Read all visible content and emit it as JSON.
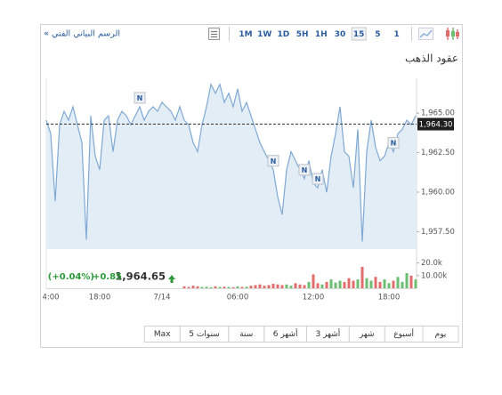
{
  "toolbar": {
    "link": "الرسم البياني الفني »",
    "intervals": [
      "1M",
      "1W",
      "1D",
      "5H",
      "1H",
      "30",
      "15",
      "5",
      "1"
    ],
    "selected": "15"
  },
  "ranges": [
    "يوم",
    "أسبوع",
    "شهر",
    "3 أشهر",
    "6 أشهر",
    "سنة",
    "5 سنوات",
    "Max"
  ],
  "chart_data": {
    "type": "line",
    "title": "عقود الذهب",
    "color": "#7fa9d4",
    "fill": "#e3edf6",
    "categories": [
      null,
      "4:00",
      null,
      null,
      null,
      null,
      null,
      null,
      null,
      null,
      null,
      null,
      "18:00",
      null,
      null,
      null,
      null,
      null,
      null,
      null,
      null,
      null,
      null,
      null,
      null,
      null,
      "7/14",
      null,
      null,
      null,
      null,
      null,
      null,
      null,
      null,
      null,
      null,
      null,
      null,
      null,
      null,
      null,
      null,
      "06:00",
      null,
      null,
      null,
      null,
      null,
      null,
      null,
      null,
      null,
      null,
      null,
      null,
      null,
      null,
      null,
      null,
      "12:00",
      null,
      null,
      null,
      null,
      null,
      null,
      null,
      null,
      null,
      null,
      null,
      null,
      null,
      null,
      null,
      null,
      "18:00",
      null,
      null,
      null,
      null,
      null,
      null
    ],
    "values": [
      1964.55,
      1963.69,
      1959.43,
      1964.26,
      1965.11,
      1964.55,
      1965.4,
      1964.26,
      1963.13,
      1956.99,
      1964.83,
      1962.27,
      1961.42,
      1964.55,
      1964.83,
      1962.56,
      1964.55,
      1965.11,
      1964.83,
      1964.26,
      1964.83,
      1965.4,
      1964.55,
      1965.11,
      1965.4,
      1965.11,
      1965.68,
      1965.4,
      1965.11,
      1964.55,
      1965.4,
      1964.55,
      1964.26,
      1963.13,
      1962.56,
      1964.26,
      1965.4,
      1966.82,
      1966.25,
      1966.82,
      1965.68,
      1966.25,
      1965.4,
      1966.53,
      1965.11,
      1965.68,
      1964.83,
      1963.98,
      1963.13,
      1962.56,
      1961.99,
      1961.42,
      1959.71,
      1958.58,
      1961.42,
      1962.56,
      1961.99,
      1961.42,
      1960.85,
      1961.99,
      1960.56,
      1960.28,
      1961.42,
      1960.0,
      1962.27,
      1963.69,
      1965.4,
      1962.56,
      1962.27,
      1960.28,
      1963.98,
      1956.88,
      1962.56,
      1964.55,
      1962.84,
      1961.99,
      1962.27,
      1963.13,
      1962.56,
      1963.69,
      1963.98,
      1964.55,
      1964.26,
      1964.83
    ],
    "ylim": [
      1956.4,
      1967.2
    ],
    "yticks": [
      {
        "value": 1965,
        "label": "1,965.00"
      },
      {
        "value": 1962.5,
        "label": "1,962.50"
      },
      {
        "value": 1960,
        "label": "1,960.00"
      },
      {
        "value": 1957.5,
        "label": "1,957.50"
      }
    ],
    "last_price": {
      "value": 1964.3,
      "label": "1,964.30"
    },
    "quote": {
      "price": "1,964.65",
      "change": "+0.85",
      "change_percent": "(+0.04%)"
    },
    "annotations": [
      {
        "text": "N",
        "at": 21
      },
      {
        "text": "N",
        "at": 51
      },
      {
        "text": "N",
        "at": 58
      },
      {
        "text": "N",
        "at": 61
      },
      {
        "text": "N",
        "at": 78
      }
    ],
    "volume": {
      "up_color": "#6cbf72",
      "down_color": "#e26d6d",
      "ylim": [
        0,
        24000
      ],
      "yticks": [
        {
          "value": 20000,
          "label": "20.0k"
        },
        {
          "value": 10000,
          "label": "10.00k"
        }
      ],
      "values": [
        0,
        0,
        0,
        0,
        0,
        0,
        0,
        0,
        0,
        0,
        0,
        0,
        0,
        0,
        0,
        0,
        0,
        0,
        0,
        0,
        0,
        0,
        0,
        0,
        0,
        0,
        0,
        0,
        0,
        0,
        0,
        1500,
        1000,
        2000,
        1500,
        1000,
        1200,
        800,
        1500,
        1000,
        1200,
        1000,
        800,
        1500,
        1000,
        1200,
        2000,
        2500,
        3000,
        2000,
        2500,
        3500,
        3000,
        2500,
        3000,
        2000,
        4000,
        3000,
        2500,
        5000,
        11000,
        4000,
        3000,
        5000,
        7000,
        4500,
        6000,
        5000,
        8000,
        6000,
        7000,
        17000,
        8000,
        6000,
        9000,
        5000,
        7000,
        4000,
        6000,
        9000,
        5000,
        12000,
        10000,
        7000
      ]
    }
  }
}
